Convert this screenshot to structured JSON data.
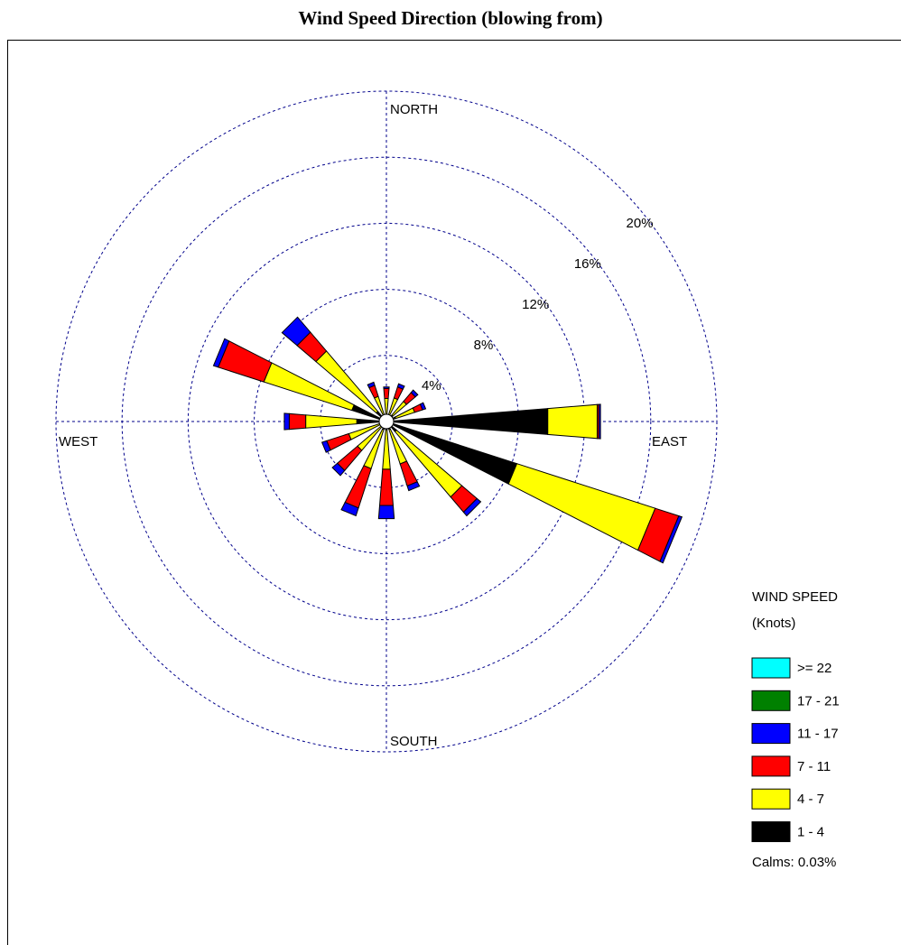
{
  "chart_data": {
    "type": "windrose",
    "title": "Wind Speed Direction (blowing from)",
    "x": [
      0,
      22.5,
      45,
      67.5,
      90,
      112.5,
      135,
      157.5,
      180,
      202.5,
      225,
      247.5,
      270,
      292.5,
      315,
      337.5
    ],
    "compass_labels": [
      "NORTH",
      "EAST",
      "SOUTH",
      "WEST"
    ],
    "legend_title": [
      "WIND SPEED",
      "(Knots)"
    ],
    "series": [
      {
        "name": ">= 22",
        "color": "#00ffff",
        "values": [
          0,
          0,
          0,
          0,
          0,
          0,
          0,
          0,
          0,
          0,
          0,
          0,
          0,
          0,
          0,
          0
        ]
      },
      {
        "name": "17 - 21",
        "color": "#008000",
        "values": [
          0,
          0,
          0,
          0,
          0,
          0,
          0,
          0,
          0,
          0,
          0,
          0,
          0,
          0,
          0,
          0
        ]
      },
      {
        "name": "11 - 17",
        "color": "#0000ff",
        "values": [
          0.1,
          0.2,
          0.2,
          0.2,
          0.1,
          0.2,
          0.3,
          0.3,
          0.8,
          0.5,
          0.4,
          0.3,
          0.3,
          0.3,
          1.2,
          0.2
        ]
      },
      {
        "name": "7 - 11",
        "color": "#ff0000",
        "values": [
          0.6,
          0.7,
          0.7,
          0.5,
          0.1,
          1.5,
          1.2,
          1.4,
          2.2,
          2.5,
          1.6,
          1.4,
          1.0,
          2.9,
          1.5,
          0.7
        ]
      },
      {
        "name": "4 - 7",
        "color": "#ffff00",
        "values": [
          1.0,
          1.1,
          1.1,
          1.2,
          3.0,
          8.8,
          5.2,
          2.2,
          2.4,
          2.5,
          1.9,
          2.0,
          3.1,
          5.6,
          4.8,
          1.2
        ]
      },
      {
        "name": "1 - 4",
        "color": "#000000",
        "values": [
          0.4,
          0.4,
          0.5,
          0.6,
          9.8,
          8.3,
          0.8,
          0.5,
          0.5,
          0.5,
          0.4,
          0.4,
          1.8,
          2.2,
          0.8,
          0.4
        ]
      }
    ],
    "ylim": [
      0,
      20
    ],
    "yticks": [
      {
        "value": 4,
        "label": "4%"
      },
      {
        "value": 8,
        "label": "8%"
      },
      {
        "value": 12,
        "label": "12%"
      },
      {
        "value": 16,
        "label": "16%"
      },
      {
        "value": 20,
        "label": "20%"
      }
    ],
    "calms_label": "Calms: 0.03%"
  }
}
